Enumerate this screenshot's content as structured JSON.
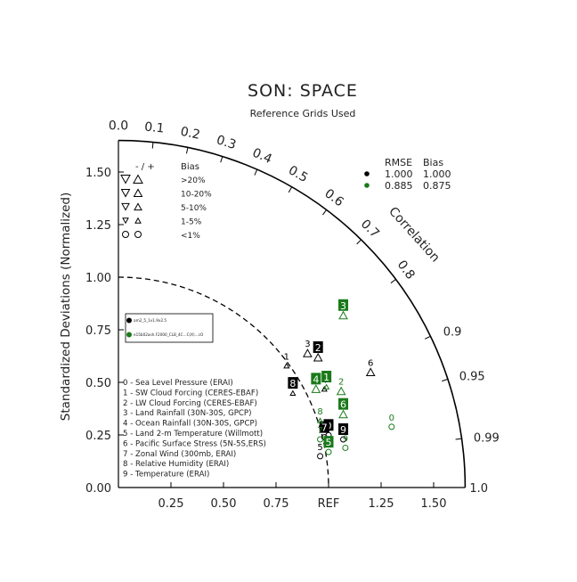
{
  "chart_data": {
    "type": "scatter",
    "subtype": "taylor-diagram",
    "title": "SON: SPACE",
    "subtitle": "Reference Grids Used",
    "ylabel": "Standardized Deviations (Normalized)",
    "arc_label": "Correlation",
    "ref_label": "REF",
    "std_ticks": [
      "0.25",
      "0.50",
      "0.75",
      "1.00",
      "1.25",
      "1.50"
    ],
    "x_ticks": [
      "0.25",
      "0.50",
      "0.75",
      "REF",
      "1.25",
      "1.50"
    ],
    "y_ticks": [
      "0.00",
      "0.25",
      "0.50",
      "0.75",
      "1.00",
      "1.25",
      "1.50"
    ],
    "corr_ticks_top": [
      "0.0",
      "0.1",
      "0.2",
      "0.3",
      "0.4",
      "0.5",
      "0.6",
      "0.7",
      "0.8"
    ],
    "corr_ticks_right": [
      "0.9",
      "0.95",
      "0.99"
    ],
    "corr_tick_right_end": "1.0",
    "xlim": [
      0,
      1.65
    ],
    "ylim": [
      0,
      1.65
    ],
    "ref_std": 1.0,
    "bias_legend": {
      "header": [
        "- / +",
        "Bias"
      ],
      "rows": [
        ">20%",
        "10-20%",
        "5-10%",
        "1-5%",
        "<1%"
      ]
    },
    "rmse_legend": {
      "header": [
        "RMSE",
        "Bias"
      ],
      "rows": [
        {
          "color": "#000000",
          "rmse": "1.000",
          "bias": "1.000"
        },
        {
          "color": "#1a7a1a",
          "rmse": "0.885",
          "bias": "0.875"
        }
      ]
    },
    "case_legend": [
      {
        "name": "am2_5_1v1.9x2.5",
        "color": "#000000"
      },
      {
        "name": "e15b02ash.F2000_CLB_4C...C(X)...cO",
        "color": "#1a7a1a"
      }
    ],
    "variables": [
      "0 - Sea Level Pressure (ERAI)",
      "1 - SW Cloud Forcing (CERES-EBAF)",
      "2 - LW Cloud Forcing (CERES-EBAF)",
      "3 - Land Rainfall (30N-30S, GPCP)",
      "4 - Ocean Rainfall (30N-30S, GPCP)",
      "5 - Land 2-m Temperature (Willmott)",
      "6 - Pacific Surface Stress (5N-5S,ERS)",
      "7 - Zonal Wind (300mb, ERAI)",
      "8 - Relative Humidity (ERAI)",
      "9 - Temperature (ERAI)"
    ],
    "series": [
      {
        "name": "am2_5_1v1.9x2.5",
        "color": "#000000",
        "points": [
          {
            "label": "0",
            "x": 1.0,
            "y": 0.27,
            "box": true,
            "bias": "o"
          },
          {
            "label": "1",
            "x": 0.8,
            "y": 0.6,
            "box": false,
            "bias": "up-small"
          },
          {
            "label": "2",
            "x": 0.95,
            "y": 0.64,
            "box": true,
            "bias": "up"
          },
          {
            "label": "3",
            "x": 0.9,
            "y": 0.66,
            "box": false,
            "bias": "up"
          },
          {
            "label": "4",
            "x": 0.98,
            "y": 0.49,
            "box": false,
            "bias": "up-small"
          },
          {
            "label": "5",
            "x": 0.96,
            "y": 0.17,
            "box": false,
            "bias": "o"
          },
          {
            "label": "6",
            "x": 1.2,
            "y": 0.57,
            "box": false,
            "bias": "up"
          },
          {
            "label": "7",
            "x": 0.98,
            "y": 0.26,
            "box": true,
            "bias": "o"
          },
          {
            "label": "8",
            "x": 0.83,
            "y": 0.47,
            "box": true,
            "bias": "up-small"
          },
          {
            "label": "9",
            "x": 1.07,
            "y": 0.25,
            "box": true,
            "bias": "o"
          }
        ]
      },
      {
        "name": "e15b02ash",
        "color": "#1a7a1a",
        "points": [
          {
            "label": "0",
            "x": 1.3,
            "y": 0.31,
            "box": false,
            "bias": "o"
          },
          {
            "label": "1",
            "x": 0.99,
            "y": 0.5,
            "box": true,
            "bias": "up-small"
          },
          {
            "label": "2",
            "x": 1.06,
            "y": 0.48,
            "box": false,
            "bias": "up"
          },
          {
            "label": "3",
            "x": 1.07,
            "y": 0.84,
            "box": true,
            "bias": "up"
          },
          {
            "label": "4",
            "x": 0.94,
            "y": 0.49,
            "box": true,
            "bias": "up"
          },
          {
            "label": "5",
            "x": 1.0,
            "y": 0.19,
            "box": true,
            "bias": "o"
          },
          {
            "label": "6",
            "x": 1.07,
            "y": 0.37,
            "box": true,
            "bias": "up"
          },
          {
            "label": "7",
            "x": 0.96,
            "y": 0.25,
            "box": false,
            "bias": "o"
          },
          {
            "label": "8",
            "x": 0.96,
            "y": 0.34,
            "box": false,
            "bias": "up-small"
          },
          {
            "label": "9",
            "x": 1.08,
            "y": 0.21,
            "box": false,
            "bias": "o"
          }
        ]
      }
    ]
  }
}
